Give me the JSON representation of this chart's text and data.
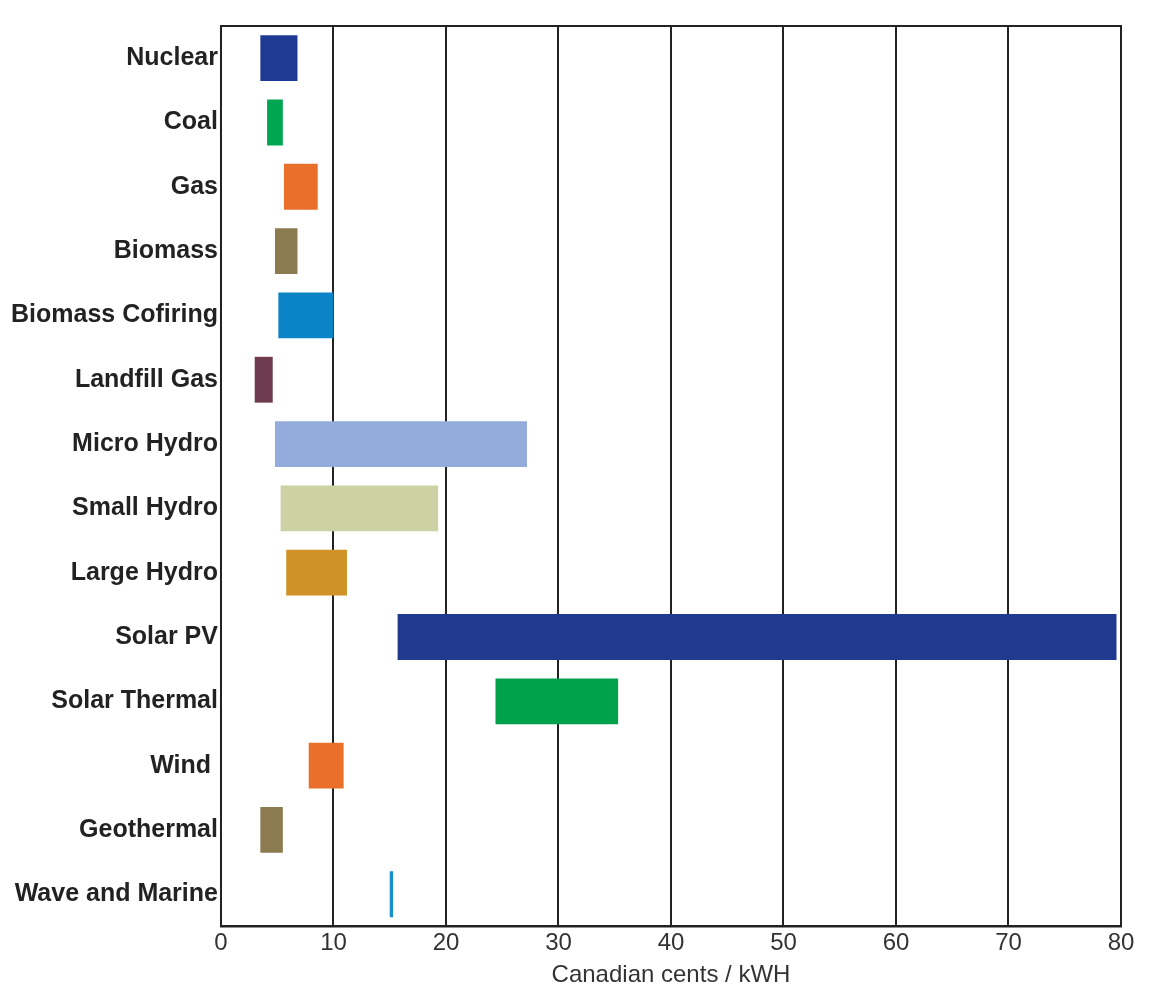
{
  "chart_data": {
    "type": "bar",
    "orientation": "horizontal",
    "xlabel": "Canadian cents / kWH",
    "categories": [
      "Nuclear",
      "Coal",
      "Gas",
      "Biomass",
      "Biomass Cofiring",
      "Landfill Gas",
      "Micro Hydro",
      "Small Hydro",
      "Large Hydro",
      "Solar PV",
      "Solar Thermal",
      "Wind ",
      "Geothermal",
      "Wave and Marine"
    ],
    "base": [
      3.5,
      4.1,
      5.6,
      4.8,
      5.1,
      3.0,
      4.8,
      5.3,
      5.8,
      15.7,
      24.4,
      7.8,
      3.5,
      15.0
    ],
    "values": [
      3.3,
      1.4,
      3.0,
      2.0,
      4.9,
      1.6,
      22.4,
      14.0,
      5.4,
      63.9,
      10.9,
      3.1,
      2.0,
      0.3
    ],
    "colors": [
      "#1f3a93",
      "#00a651",
      "#e8702a",
      "#8c7b50",
      "#0a84c6",
      "#6e3b4f",
      "#93acdb",
      "#cdd1a3",
      "#cf9227",
      "#1f3a8f",
      "#00a14b",
      "#e8702a",
      "#8c7b50",
      "#1a8fd0"
    ],
    "xlim": [
      0,
      80
    ],
    "xticks": [
      0,
      10,
      20,
      30,
      40,
      50,
      60,
      70,
      80
    ],
    "grid": "x",
    "legend": false
  }
}
